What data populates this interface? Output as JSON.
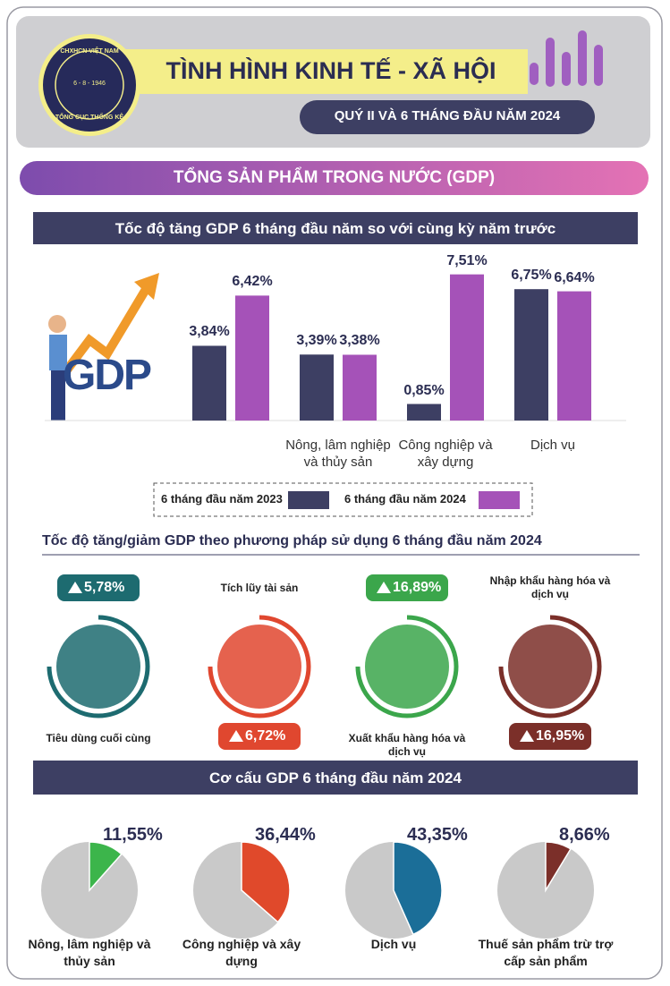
{
  "header": {
    "logo_top": "CHXHCN VIỆT NAM",
    "logo_date": "6 - 8 - 1946",
    "logo_bottom": "TỔNG CỤC THỐNG KÊ",
    "title": "TÌNH HÌNH KINH TẾ - XÃ HỘI",
    "subtitle": "QUÝ II VÀ 6 THÁNG ĐẦU NĂM 2024"
  },
  "section_title": "TỔNG SẢN PHẨM TRONG NƯỚC (GDP)",
  "chart_data": [
    {
      "type": "bar",
      "title": "Tốc độ tăng GDP 6 tháng đầu năm so với cùng kỳ năm trước",
      "annotation": "GDP",
      "categories": [
        null,
        "Nông, lâm nghiệp và thủy sản",
        "Công nghiệp và xây dựng",
        "Dịch vụ"
      ],
      "series": [
        {
          "name": "6 tháng đầu năm 2023",
          "color": "#3d3f63",
          "values": [
            3.84,
            3.39,
            0.85,
            6.75
          ],
          "value_labels": [
            "3,84%",
            "3,39%",
            "0,85%",
            "6,75%"
          ]
        },
        {
          "name": "6 tháng đầu năm 2024",
          "color": "#a552b8",
          "values": [
            6.42,
            3.38,
            7.51,
            6.64
          ],
          "value_labels": [
            "6,42%",
            "3,38%",
            "7,51%",
            "6,64%"
          ]
        }
      ],
      "ylim": [
        0,
        8
      ]
    },
    {
      "type": "indicator",
      "title": "Tốc độ tăng/giảm GDP theo phương pháp sử dụng 6 tháng đầu năm 2024",
      "categories": [
        "Tiêu dùng cuối cùng",
        "Tích lũy tài sản",
        "Xuất khẩu hàng hóa và dịch vụ",
        "Nhập khẩu hàng hóa và dịch vụ"
      ],
      "values": [
        5.78,
        6.72,
        16.89,
        16.95
      ],
      "value_labels": [
        "5,78%",
        "6,72%",
        "16,89%",
        "16,95%"
      ],
      "colors": [
        "#1d6b70",
        "#e0472f",
        "#3ba64b",
        "#7b2f29"
      ]
    },
    {
      "type": "pie",
      "title": "Cơ cấu GDP 6 tháng đầu năm 2024",
      "categories": [
        "Nông, lâm nghiệp và thủy sản",
        "Công nghiệp và xây dựng",
        "Dịch vụ",
        "Thuế sản phẩm trừ trợ cấp sản phẩm"
      ],
      "values": [
        11.55,
        36.44,
        43.35,
        8.66
      ],
      "value_labels": [
        "11,55%",
        "36,44%",
        "43,35%",
        "8,66%"
      ],
      "colors": [
        "#3cb54b",
        "#e0492b",
        "#1b6e98",
        "#7b2f29"
      ]
    }
  ]
}
